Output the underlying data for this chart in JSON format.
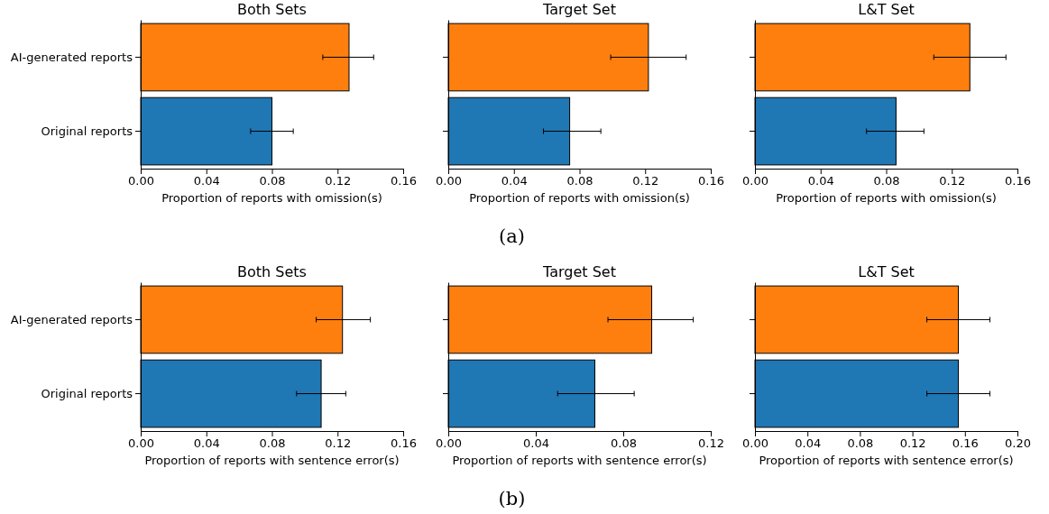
{
  "chart_data": [
    {
      "type": "bar",
      "orientation": "horizontal",
      "title": "Both Sets",
      "xlabel": "Proportion of reports with omission(s)",
      "categories": [
        "AI-generated reports",
        "Original reports"
      ],
      "values": [
        0.127,
        0.08
      ],
      "errors": [
        [
          0.111,
          0.142
        ],
        [
          0.067,
          0.093
        ]
      ],
      "colors": [
        "#ff7f0e",
        "#1f77b4"
      ],
      "xlim": [
        0,
        0.16
      ],
      "xticks": [
        {
          "value": 0,
          "label": "0.00"
        },
        {
          "value": 0.04,
          "label": "0.04"
        },
        {
          "value": 0.08,
          "label": "0.08"
        },
        {
          "value": 0.12,
          "label": "0.12"
        },
        {
          "value": 0.16,
          "label": "0.16"
        }
      ]
    },
    {
      "type": "bar",
      "orientation": "horizontal",
      "title": "Target Set",
      "xlabel": "Proportion of reports with omission(s)",
      "categories": [
        null,
        null
      ],
      "values": [
        0.122,
        0.074
      ],
      "errors": [
        [
          0.099,
          0.145
        ],
        [
          0.058,
          0.093
        ]
      ],
      "colors": [
        "#ff7f0e",
        "#1f77b4"
      ],
      "xlim": [
        0,
        0.16
      ],
      "xticks": [
        {
          "value": 0,
          "label": "0.00"
        },
        {
          "value": 0.04,
          "label": "0.04"
        },
        {
          "value": 0.08,
          "label": "0.08"
        },
        {
          "value": 0.12,
          "label": "0.12"
        },
        {
          "value": 0.16,
          "label": "0.16"
        }
      ],
      "tick_labels": "x",
      "annotations": [
        "(a)"
      ]
    },
    {
      "type": "bar",
      "orientation": "horizontal",
      "title": "L&T Set",
      "xlabel": "Proportion of reports with omission(s)",
      "categories": [
        null,
        null
      ],
      "values": [
        0.131,
        0.086
      ],
      "errors": [
        [
          0.109,
          0.153
        ],
        [
          0.068,
          0.103
        ]
      ],
      "colors": [
        "#ff7f0e",
        "#1f77b4"
      ],
      "xlim": [
        0,
        0.16
      ],
      "xticks": [
        {
          "value": 0,
          "label": "0.00"
        },
        {
          "value": 0.04,
          "label": "0.04"
        },
        {
          "value": 0.08,
          "label": "0.08"
        },
        {
          "value": 0.12,
          "label": "0.12"
        },
        {
          "value": 0.16,
          "label": "0.16"
        }
      ],
      "tick_labels": "x"
    },
    {
      "type": "bar",
      "orientation": "horizontal",
      "title": "Both Sets",
      "xlabel": "Proportion of reports with sentence error(s)",
      "categories": [
        "AI-generated reports",
        "Original reports"
      ],
      "values": [
        0.123,
        0.11
      ],
      "errors": [
        [
          0.107,
          0.14
        ],
        [
          0.095,
          0.125
        ]
      ],
      "colors": [
        "#ff7f0e",
        "#1f77b4"
      ],
      "xlim": [
        0,
        0.16
      ],
      "xticks": [
        {
          "value": 0,
          "label": "0.00"
        },
        {
          "value": 0.04,
          "label": "0.04"
        },
        {
          "value": 0.08,
          "label": "0.08"
        },
        {
          "value": 0.12,
          "label": "0.12"
        },
        {
          "value": 0.16,
          "label": "0.16"
        }
      ]
    },
    {
      "type": "bar",
      "orientation": "horizontal",
      "title": "Target Set",
      "xlabel": "Proportion of reports with sentence error(s)",
      "categories": [
        null,
        null
      ],
      "values": [
        0.093,
        0.067
      ],
      "errors": [
        [
          0.073,
          0.112
        ],
        [
          0.05,
          0.085
        ]
      ],
      "colors": [
        "#ff7f0e",
        "#1f77b4"
      ],
      "xlim": [
        0,
        0.12
      ],
      "xticks": [
        {
          "value": 0,
          "label": "0.00"
        },
        {
          "value": 0.04,
          "label": "0.04"
        },
        {
          "value": 0.08,
          "label": "0.08"
        },
        {
          "value": 0.12,
          "label": "0.12"
        }
      ],
      "tick_labels": "x",
      "annotations": [
        "(b)"
      ]
    },
    {
      "type": "bar",
      "orientation": "horizontal",
      "title": "L&T Set",
      "xlabel": "Proportion of reports with sentence error(s)",
      "categories": [
        null,
        null
      ],
      "values": [
        0.155,
        0.155
      ],
      "errors": [
        [
          0.131,
          0.179
        ],
        [
          0.131,
          0.179
        ]
      ],
      "colors": [
        "#ff7f0e",
        "#1f77b4"
      ],
      "xlim": [
        0,
        0.2
      ],
      "xticks": [
        {
          "value": 0,
          "label": "0.00"
        },
        {
          "value": 0.04,
          "label": "0.04"
        },
        {
          "value": 0.08,
          "label": "0.08"
        },
        {
          "value": 0.12,
          "label": "0.12"
        },
        {
          "value": 0.16,
          "label": "0.16"
        },
        {
          "value": 0.2,
          "label": "0.20"
        }
      ],
      "tick_labels": "x"
    }
  ]
}
